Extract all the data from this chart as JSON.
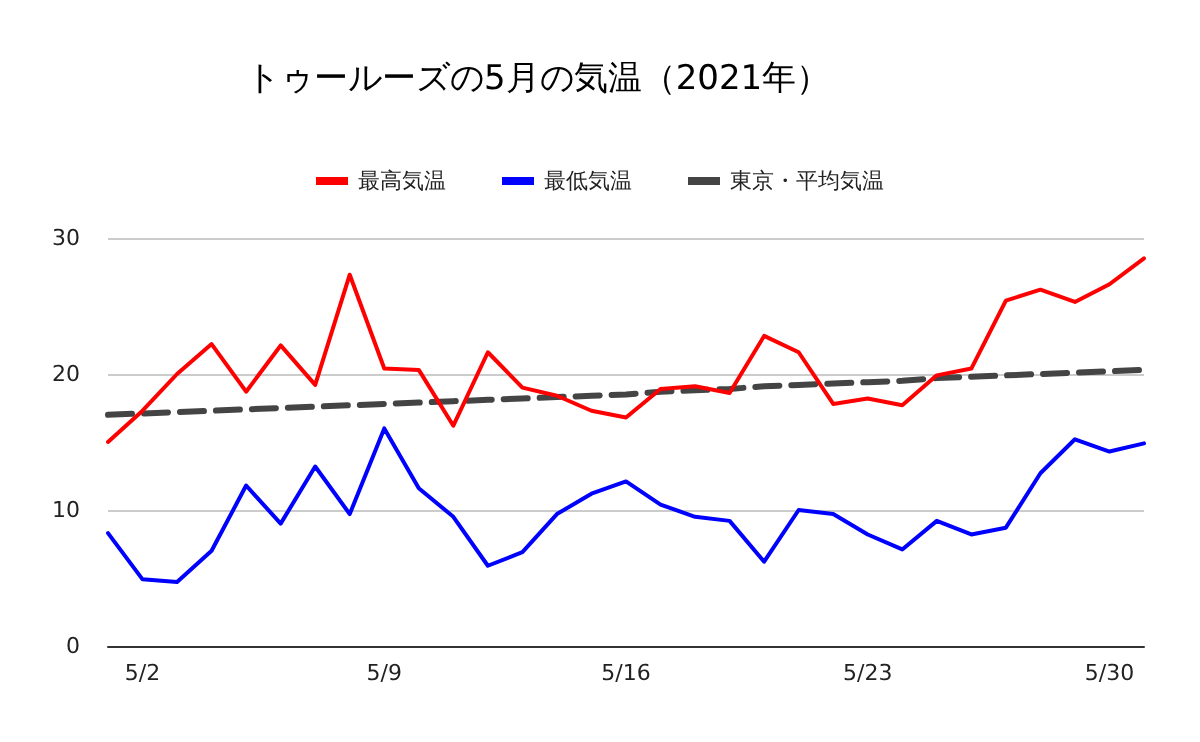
{
  "chart_data": {
    "type": "line",
    "title": "トゥールーズの5月の気温（2021年）",
    "categories": [
      null,
      "5/2",
      null,
      null,
      null,
      null,
      null,
      null,
      "5/9",
      null,
      null,
      null,
      null,
      null,
      null,
      "5/16",
      null,
      null,
      null,
      null,
      null,
      null,
      "5/23",
      null,
      null,
      null,
      null,
      null,
      null,
      "5/30",
      null
    ],
    "series": [
      {
        "name": "最高気温",
        "color": "#ff0000",
        "line_style": "solid",
        "values": [
          15.0,
          17.3,
          20.0,
          22.2,
          18.7,
          22.1,
          19.2,
          27.3,
          20.4,
          20.3,
          16.2,
          21.6,
          19.0,
          18.4,
          17.3,
          16.8,
          18.9,
          19.1,
          18.6,
          22.8,
          21.6,
          17.8,
          18.2,
          17.7,
          19.9,
          20.4,
          25.4,
          26.2,
          25.3,
          26.6,
          28.5
        ]
      },
      {
        "name": "最低気温",
        "color": "#0000ff",
        "line_style": "solid",
        "values": [
          8.3,
          4.9,
          4.7,
          7.0,
          11.8,
          9.0,
          13.2,
          9.7,
          16.0,
          11.6,
          9.5,
          5.9,
          6.9,
          9.7,
          11.2,
          12.1,
          10.4,
          9.5,
          9.2,
          6.2,
          10.0,
          9.7,
          8.2,
          7.1,
          9.2,
          8.2,
          8.7,
          12.7,
          15.2,
          14.3,
          14.9
        ]
      },
      {
        "name": "東京・平均気温",
        "color": "#444444",
        "line_style": "dashed",
        "values": [
          17.0,
          17.1,
          17.2,
          17.3,
          17.4,
          17.5,
          17.6,
          17.7,
          17.8,
          17.9,
          18.0,
          18.1,
          18.2,
          18.3,
          18.4,
          18.5,
          18.7,
          18.8,
          18.9,
          19.1,
          19.2,
          19.3,
          19.4,
          19.5,
          19.7,
          19.8,
          19.9,
          20.0,
          20.1,
          20.2,
          20.3
        ]
      }
    ],
    "ylim": [
      0,
      30
    ],
    "yticks": [
      0,
      10,
      20,
      30
    ],
    "grid": "y",
    "legend": "top",
    "marker": "none"
  }
}
